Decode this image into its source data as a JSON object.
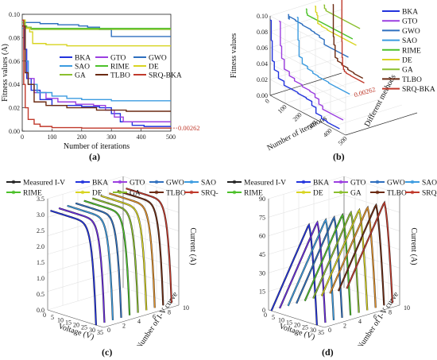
{
  "panel_labels": [
    "(a)",
    "(b)",
    "(c)",
    "(d)"
  ],
  "colors": {
    "BKA": "#2233dd",
    "SAO": "#3b9be0",
    "GA": "#8bbf2e",
    "GTO": "#9b3fe0",
    "RIME": "#4cc12a",
    "TLBO": "#6b2a12",
    "GWO": "#2e6fbf",
    "DE": "#d8d421",
    "SRQ-BKA": "#c0392b",
    "Measured I-V": "#222222"
  },
  "chart_data": [
    {
      "id": "a",
      "type": "line",
      "xlabel": "Number of iterations",
      "ylabel": "Fitness values (A)",
      "xlim": [
        0,
        500
      ],
      "ylim": [
        0,
        0.1
      ],
      "xticks": [
        0,
        100,
        200,
        300,
        400,
        500
      ],
      "yticks": [
        "0.00",
        "0.02",
        "0.04",
        "0.06",
        "0.08",
        "0.10"
      ],
      "legend_placement": "center-right",
      "legend": [
        "BKA",
        "GTO",
        "GWO",
        "SAO",
        "RIME",
        "DE",
        "GA",
        "TLBO",
        "SRQ-BKA"
      ],
      "annotation": "0.00262",
      "series": [
        {
          "name": "BKA",
          "x": [
            0,
            8,
            15,
            30,
            60,
            100,
            150,
            200,
            260,
            300,
            330,
            370,
            410,
            500
          ],
          "y": [
            0.095,
            0.07,
            0.045,
            0.035,
            0.027,
            0.022,
            0.022,
            0.021,
            0.02,
            0.015,
            0.008,
            0.005,
            0.004,
            0.004
          ]
        },
        {
          "name": "GTO",
          "x": [
            0,
            10,
            20,
            40,
            80,
            120,
            180,
            240,
            280,
            310,
            340,
            380,
            420,
            500
          ],
          "y": [
            0.09,
            0.06,
            0.045,
            0.033,
            0.028,
            0.025,
            0.023,
            0.022,
            0.018,
            0.012,
            0.008,
            0.008,
            0.008,
            0.008
          ]
        },
        {
          "name": "GWO",
          "x": [
            0,
            5,
            10,
            60,
            120,
            190,
            220,
            260,
            300,
            500
          ],
          "y": [
            0.095,
            0.09,
            0.093,
            0.092,
            0.091,
            0.09,
            0.089,
            0.087,
            0.081,
            0.081
          ]
        },
        {
          "name": "SAO",
          "x": [
            0,
            10,
            20,
            50,
            100,
            150,
            200,
            300,
            400,
            500
          ],
          "y": [
            0.088,
            0.06,
            0.04,
            0.033,
            0.03,
            0.028,
            0.027,
            0.026,
            0.026,
            0.026
          ]
        },
        {
          "name": "RIME",
          "x": [
            0,
            8,
            15,
            500
          ],
          "y": [
            0.095,
            0.09,
            0.088,
            0.088
          ]
        },
        {
          "name": "DE",
          "x": [
            0,
            10,
            25,
            35,
            80,
            150,
            500
          ],
          "y": [
            0.095,
            0.088,
            0.085,
            0.075,
            0.074,
            0.073,
            0.073
          ]
        },
        {
          "name": "GA",
          "x": [
            0,
            10,
            30,
            500
          ],
          "y": [
            0.093,
            0.089,
            0.087,
            0.087
          ]
        },
        {
          "name": "TLBO",
          "x": [
            0,
            10,
            20,
            40,
            80,
            150,
            250,
            350,
            500
          ],
          "y": [
            0.09,
            0.05,
            0.04,
            0.025,
            0.022,
            0.02,
            0.018,
            0.017,
            0.017
          ]
        },
        {
          "name": "SRQ-BKA",
          "x": [
            0,
            5,
            10,
            20,
            40,
            60,
            100,
            200,
            500
          ],
          "y": [
            0.095,
            0.04,
            0.02,
            0.01,
            0.006,
            0.004,
            0.003,
            0.00262,
            0.00262
          ]
        }
      ]
    },
    {
      "id": "b",
      "type": "line",
      "xlabel": "Number of iterations",
      "ylabel": "Fitness values",
      "zlabel": "Different methods",
      "yticks": [
        "0.00",
        "0.02",
        "0.04",
        "0.06",
        "0.08",
        "0.10"
      ],
      "xticks": [
        "0",
        "100",
        "200",
        "300",
        "400",
        "500"
      ],
      "annotation": "0.00262",
      "legend_placement": "top-right",
      "legend": [
        "BKA",
        "GTO",
        "GWO",
        "SAO",
        "RIME",
        "DE",
        "GA",
        "TLBO",
        "SRQ-BKA"
      ]
    },
    {
      "id": "c",
      "type": "line",
      "xlabel": "Voltage (V)",
      "ylabel": "Number of I-V curve",
      "zlabel": "Current (A)",
      "zticks": [
        "0.0",
        "0.5",
        "1.0",
        "1.5",
        "2.0",
        "2.5",
        "3.0",
        "3.5"
      ],
      "xticks": [
        "0",
        "5",
        "10",
        "15",
        "20",
        "25",
        "30",
        "35"
      ],
      "yticks": [
        "0",
        "2",
        "4",
        "6",
        "8",
        "10"
      ],
      "legend_placement": "top",
      "legend": [
        "Measured I-V",
        "BKA",
        "GTO",
        "GWO",
        "SAO",
        "RIME",
        "DE",
        "GA",
        "TLBO",
        "SRQ-BKA"
      ]
    },
    {
      "id": "d",
      "type": "line",
      "xlabel": "Voltage (V)",
      "ylabel": "Number of I-V curve",
      "zlabel": "Current (A)",
      "zticks": [
        "0",
        "15",
        "30",
        "45",
        "60",
        "75",
        "90"
      ],
      "xticks": [
        "0",
        "5",
        "10",
        "15",
        "20",
        "25",
        "30",
        "35"
      ],
      "yticks": [
        "0",
        "2",
        "4",
        "6",
        "8",
        "10"
      ],
      "legend_placement": "top",
      "legend": [
        "Measured I-V",
        "BKA",
        "GTO",
        "GWO",
        "SAO",
        "RIME",
        "DE",
        "GA",
        "TLBO",
        "SRQ-BKA"
      ]
    }
  ]
}
